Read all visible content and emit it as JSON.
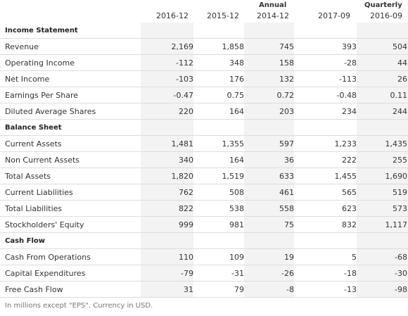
{
  "header": {
    "annual_label": "Annual",
    "quarterly_label": "Quarterly",
    "columns": [
      "2016-12",
      "2015-12",
      "2014-12",
      "2017-09",
      "2016-09"
    ]
  },
  "sections": [
    {
      "title": "Income Statement",
      "rows": [
        {
          "label": "Revenue",
          "values": [
            "2,169",
            "1,858",
            "745",
            "393",
            "504"
          ]
        },
        {
          "label": "Operating Income",
          "values": [
            "-112",
            "348",
            "158",
            "-28",
            "44"
          ]
        },
        {
          "label": "Net Income",
          "values": [
            "-103",
            "176",
            "132",
            "-113",
            "26"
          ]
        },
        {
          "label": "Earnings Per Share",
          "values": [
            "-0.47",
            "0.75",
            "0.72",
            "-0.48",
            "0.11"
          ]
        },
        {
          "label": "Diluted Average Shares",
          "values": [
            "220",
            "164",
            "203",
            "234",
            "244"
          ]
        }
      ]
    },
    {
      "title": "Balance Sheet",
      "rows": [
        {
          "label": "Current Assets",
          "values": [
            "1,481",
            "1,355",
            "597",
            "1,233",
            "1,435"
          ]
        },
        {
          "label": "Non Current Assets",
          "values": [
            "340",
            "164",
            "36",
            "222",
            "255"
          ]
        },
        {
          "label": "Total Assets",
          "values": [
            "1,820",
            "1,519",
            "633",
            "1,455",
            "1,690"
          ]
        },
        {
          "label": "Current Liabilities",
          "values": [
            "762",
            "508",
            "461",
            "565",
            "519"
          ]
        },
        {
          "label": "Total Liabilities",
          "values": [
            "822",
            "538",
            "558",
            "623",
            "573"
          ]
        },
        {
          "label": "Stockholders' Equity",
          "values": [
            "999",
            "981",
            "75",
            "832",
            "1,117"
          ]
        }
      ]
    },
    {
      "title": "Cash Flow",
      "rows": [
        {
          "label": "Cash From Operations",
          "values": [
            "110",
            "109",
            "19",
            "5",
            "-68"
          ]
        },
        {
          "label": "Capital Expenditures",
          "values": [
            "-79",
            "-31",
            "-26",
            "-18",
            "-30"
          ]
        },
        {
          "label": "Free Cash Flow",
          "values": [
            "31",
            "79",
            "-8",
            "-13",
            "-98"
          ]
        }
      ]
    }
  ],
  "footnote": "In millions except \"EPS\". Currency in USD.",
  "colors": {
    "shaded_column": "#f3f3f3",
    "row_border": "#dddddd",
    "text": "#333333"
  }
}
